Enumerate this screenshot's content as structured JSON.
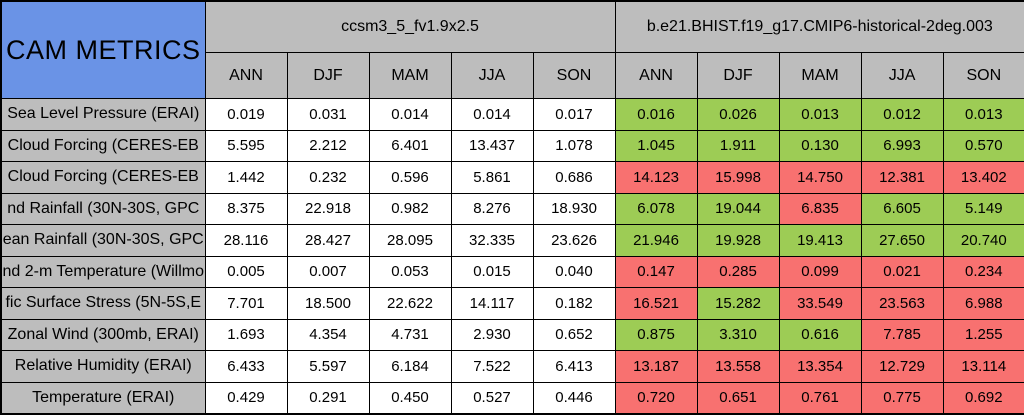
{
  "chart_data": {
    "type": "table",
    "title": "CAM METRICS",
    "corner_label": "CAM METRICS",
    "group_headers": [
      "ccsm3_5_fv1.9x2.5",
      "b.e21.BHIST.f19_g17.CMIP6-historical-2deg.003"
    ],
    "season_columns": [
      "ANN",
      "DJF",
      "MAM",
      "JJA",
      "SON"
    ],
    "rows": [
      {
        "label": "Sea Level Pressure (ERAI)",
        "left_values": [
          "0.019",
          "0.031",
          "0.014",
          "0.014",
          "0.017"
        ],
        "right_values": [
          "0.016",
          "0.026",
          "0.013",
          "0.012",
          "0.013"
        ],
        "right_colors": [
          "green",
          "green",
          "green",
          "green",
          "green"
        ]
      },
      {
        "label": "Cloud Forcing (CERES-EB",
        "left_values": [
          "5.595",
          "2.212",
          "6.401",
          "13.437",
          "1.078"
        ],
        "right_values": [
          "1.045",
          "1.911",
          "0.130",
          "6.993",
          "0.570"
        ],
        "right_colors": [
          "green",
          "green",
          "green",
          "green",
          "green"
        ]
      },
      {
        "label": "Cloud Forcing (CERES-EB",
        "left_values": [
          "1.442",
          "0.232",
          "0.596",
          "5.861",
          "0.686"
        ],
        "right_values": [
          "14.123",
          "15.998",
          "14.750",
          "12.381",
          "13.402"
        ],
        "right_colors": [
          "red",
          "red",
          "red",
          "red",
          "red"
        ]
      },
      {
        "label": "nd Rainfall (30N-30S, GPC",
        "left_values": [
          "8.375",
          "22.918",
          "0.982",
          "8.276",
          "18.930"
        ],
        "right_values": [
          "6.078",
          "19.044",
          "6.835",
          "6.605",
          "5.149"
        ],
        "right_colors": [
          "green",
          "green",
          "red",
          "green",
          "green"
        ]
      },
      {
        "label": "ean Rainfall (30N-30S, GPC",
        "left_values": [
          "28.116",
          "28.427",
          "28.095",
          "32.335",
          "23.626"
        ],
        "right_values": [
          "21.946",
          "19.928",
          "19.413",
          "27.650",
          "20.740"
        ],
        "right_colors": [
          "green",
          "green",
          "green",
          "green",
          "green"
        ]
      },
      {
        "label": "nd 2-m Temperature (Willmo",
        "left_values": [
          "0.005",
          "0.007",
          "0.053",
          "0.015",
          "0.040"
        ],
        "right_values": [
          "0.147",
          "0.285",
          "0.099",
          "0.021",
          "0.234"
        ],
        "right_colors": [
          "red",
          "red",
          "red",
          "red",
          "red"
        ]
      },
      {
        "label": "fic Surface Stress (5N-5S,E",
        "left_values": [
          "7.701",
          "18.500",
          "22.622",
          "14.117",
          "0.182"
        ],
        "right_values": [
          "16.521",
          "15.282",
          "33.549",
          "23.563",
          "6.988"
        ],
        "right_colors": [
          "red",
          "green",
          "red",
          "red",
          "red"
        ]
      },
      {
        "label": "Zonal Wind (300mb, ERAI)",
        "left_values": [
          "1.693",
          "4.354",
          "4.731",
          "2.930",
          "0.652"
        ],
        "right_values": [
          "0.875",
          "3.310",
          "0.616",
          "7.785",
          "1.255"
        ],
        "right_colors": [
          "green",
          "green",
          "green",
          "red",
          "red"
        ]
      },
      {
        "label": "Relative Humidity (ERAI)",
        "left_values": [
          "6.433",
          "5.597",
          "6.184",
          "7.522",
          "6.413"
        ],
        "right_values": [
          "13.187",
          "13.558",
          "13.354",
          "12.729",
          "13.114"
        ],
        "right_colors": [
          "red",
          "red",
          "red",
          "red",
          "red"
        ]
      },
      {
        "label": "Temperature (ERAI)",
        "left_values": [
          "0.429",
          "0.291",
          "0.450",
          "0.527",
          "0.446"
        ],
        "right_values": [
          "0.720",
          "0.651",
          "0.761",
          "0.775",
          "0.692"
        ],
        "right_colors": [
          "red",
          "red",
          "red",
          "red",
          "red"
        ]
      }
    ]
  },
  "colors": {
    "header_blue": "#6A93E6",
    "header_gray": "#BDBDBD",
    "cell_white": "#FFFFFF",
    "cell_green": "#9DCC55",
    "cell_red": "#F87170",
    "border_black": "#000000"
  }
}
